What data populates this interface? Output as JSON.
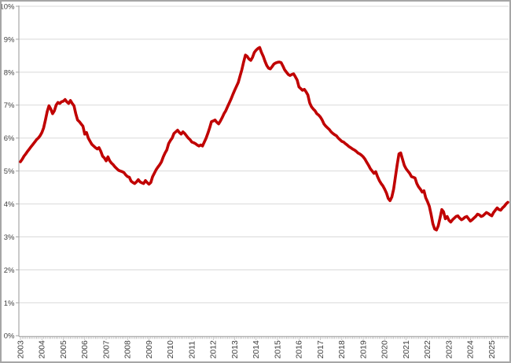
{
  "window": {
    "background": "#FFFFFF",
    "frame_border_color": "#A6A6A6"
  },
  "chart_data": {
    "type": "line",
    "title": "",
    "legend": "none",
    "grid": "horizontal",
    "ylim": [
      0,
      10
    ],
    "y_unit": "%",
    "y_tick_labels": [
      "0%",
      "1%",
      "2%",
      "3%",
      "4%",
      "5%",
      "6%",
      "7%",
      "8%",
      "9%",
      "10%"
    ],
    "x_tick_label_rotation_deg": -90,
    "x_minor_tick_interval": "month",
    "year_labels": [
      "2003",
      "2004",
      "2005",
      "2006",
      "2007",
      "2008",
      "2009",
      "2010",
      "2011",
      "2012",
      "2013",
      "2014",
      "2015",
      "2016",
      "2017",
      "2018",
      "2019",
      "2020",
      "2021",
      "2022",
      "2023",
      "2024",
      "2025"
    ],
    "start_month": "2003-01",
    "end_month": "2025-10",
    "colors": {
      "line": "#C00000",
      "gridline": "#D9D9D9",
      "axis": "#A6A6A6",
      "tick": "#A6A6A6",
      "label": "#404040"
    },
    "series": [
      {
        "name": "red-line-series",
        "color": "#C00000",
        "stroke_width": 3.6,
        "monthly_values": [
          5.28,
          5.36,
          5.45,
          5.52,
          5.6,
          5.67,
          5.74,
          5.81,
          5.88,
          5.95,
          6.0,
          6.07,
          6.17,
          6.31,
          6.55,
          6.81,
          6.98,
          6.88,
          6.74,
          6.83,
          7.0,
          7.08,
          7.05,
          7.1,
          7.12,
          7.17,
          7.1,
          7.05,
          7.14,
          7.05,
          6.98,
          6.74,
          6.55,
          6.5,
          6.43,
          6.36,
          6.12,
          6.17,
          6.0,
          5.9,
          5.81,
          5.76,
          5.71,
          5.67,
          5.71,
          5.6,
          5.45,
          5.4,
          5.31,
          5.43,
          5.31,
          5.24,
          5.19,
          5.12,
          5.07,
          5.02,
          5.0,
          4.98,
          4.95,
          4.88,
          4.83,
          4.81,
          4.69,
          4.65,
          4.62,
          4.67,
          4.74,
          4.67,
          4.64,
          4.62,
          4.71,
          4.65,
          4.6,
          4.65,
          4.83,
          4.93,
          5.04,
          5.12,
          5.19,
          5.28,
          5.43,
          5.55,
          5.64,
          5.83,
          5.93,
          6.0,
          6.14,
          6.19,
          6.24,
          6.17,
          6.12,
          6.19,
          6.14,
          6.07,
          6.0,
          5.95,
          5.88,
          5.86,
          5.83,
          5.79,
          5.76,
          5.79,
          5.76,
          5.88,
          6.0,
          6.15,
          6.31,
          6.5,
          6.52,
          6.55,
          6.48,
          6.43,
          6.52,
          6.62,
          6.74,
          6.83,
          6.95,
          7.07,
          7.19,
          7.33,
          7.45,
          7.57,
          7.69,
          7.88,
          8.07,
          8.31,
          8.52,
          8.48,
          8.4,
          8.36,
          8.45,
          8.6,
          8.67,
          8.72,
          8.75,
          8.6,
          8.48,
          8.33,
          8.2,
          8.12,
          8.1,
          8.17,
          8.25,
          8.28,
          8.3,
          8.31,
          8.29,
          8.19,
          8.07,
          8.0,
          7.93,
          7.9,
          7.93,
          7.95,
          7.86,
          7.76,
          7.55,
          7.5,
          7.45,
          7.48,
          7.4,
          7.31,
          7.07,
          6.95,
          6.88,
          6.83,
          6.74,
          6.7,
          6.64,
          6.55,
          6.43,
          6.36,
          6.31,
          6.26,
          6.19,
          6.14,
          6.1,
          6.07,
          6.0,
          5.95,
          5.9,
          5.88,
          5.83,
          5.79,
          5.74,
          5.71,
          5.67,
          5.64,
          5.6,
          5.55,
          5.52,
          5.48,
          5.43,
          5.36,
          5.26,
          5.17,
          5.07,
          5.0,
          4.93,
          4.98,
          4.83,
          4.71,
          4.62,
          4.55,
          4.45,
          4.33,
          4.17,
          4.1,
          4.21,
          4.45,
          4.81,
          5.19,
          5.52,
          5.55,
          5.36,
          5.17,
          5.07,
          5.0,
          4.93,
          4.83,
          4.81,
          4.79,
          4.62,
          4.52,
          4.45,
          4.36,
          4.4,
          4.19,
          4.07,
          3.93,
          3.69,
          3.4,
          3.24,
          3.21,
          3.33,
          3.57,
          3.83,
          3.76,
          3.55,
          3.62,
          3.5,
          3.45,
          3.52,
          3.57,
          3.62,
          3.64,
          3.57,
          3.52,
          3.55,
          3.6,
          3.62,
          3.55,
          3.48,
          3.52,
          3.57,
          3.62,
          3.69,
          3.67,
          3.62,
          3.64,
          3.69,
          3.74,
          3.71,
          3.67,
          3.64,
          3.74,
          3.81,
          3.88,
          3.83,
          3.81,
          3.88,
          3.93,
          4.0,
          4.05
        ]
      }
    ]
  }
}
